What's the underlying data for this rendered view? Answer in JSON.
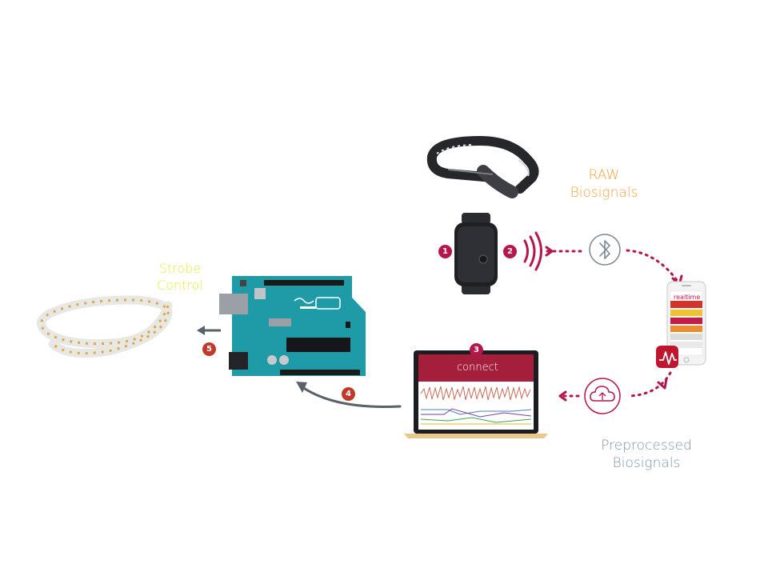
{
  "labels": {
    "raw_line1": "RAW",
    "raw_line2": "Biosignals",
    "pre_line1": "Preprocessed",
    "pre_line2": "Biosignals",
    "strobe_line1": "Strobe",
    "strobe_line2": "Control"
  },
  "badges": {
    "b1": "1",
    "b2": "2",
    "b3": "3",
    "b4": "4",
    "b5": "5"
  },
  "laptop": {
    "app_name": "connect"
  },
  "phone": {
    "app_name": "realtime"
  },
  "icons": {
    "wireless": "wifi-signal-icon",
    "bluetooth": "bluetooth-icon",
    "cloud": "cloud-sync-icon",
    "app": "realtime-app-icon"
  },
  "colors": {
    "accent": "#b5174d",
    "raw_label": "#f0a23c",
    "preprocessed_label": "#7d95a6",
    "strobe_label": "#e8ea3a",
    "badge_red": "#c0392b"
  }
}
